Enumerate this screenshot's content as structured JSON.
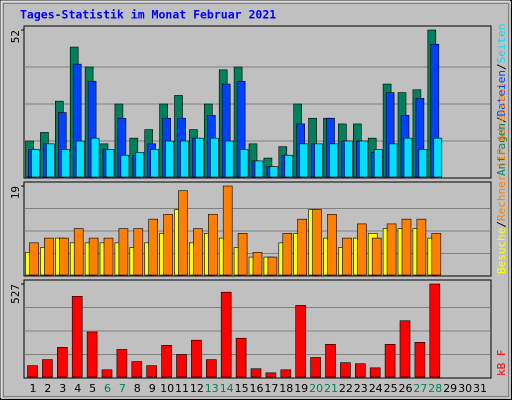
{
  "chart_data": [
    {
      "type": "bar",
      "title": "Tages-Statistik im Monat Februar 2021",
      "ylim": [
        0,
        52
      ],
      "yticks": [
        52
      ],
      "legend_separator": "/",
      "series": [
        {
          "name": "Anfragen",
          "color": "#00805c",
          "values": [
            13,
            16,
            27,
            46,
            39,
            12,
            26,
            14,
            17,
            26,
            29,
            17,
            26,
            38,
            39,
            12,
            7,
            11,
            26,
            21,
            21,
            19,
            19,
            14,
            33,
            30,
            31,
            52,
            null,
            null,
            null
          ]
        },
        {
          "name": "Dateien",
          "color": "#0040ff",
          "values": [
            10,
            12,
            23,
            40,
            34,
            10,
            21,
            8,
            12,
            21,
            21,
            14,
            22,
            33,
            34,
            6,
            4,
            8,
            19,
            12,
            21,
            13,
            13,
            9,
            30,
            22,
            28,
            47,
            null,
            null,
            null
          ]
        },
        {
          "name": "Seiten",
          "color": "#00e0ff",
          "values": [
            10,
            12,
            10,
            13,
            14,
            10,
            8,
            9,
            10,
            13,
            13,
            14,
            14,
            13,
            10,
            6,
            4,
            8,
            12,
            12,
            12,
            13,
            13,
            10,
            12,
            14,
            10,
            14,
            null,
            null,
            null
          ]
        }
      ]
    },
    {
      "type": "bar",
      "ylim": [
        0,
        19
      ],
      "yticks": [
        19
      ],
      "legend_separator": "/",
      "series": [
        {
          "name": "Besuche",
          "color": "#ffff00",
          "values": [
            5,
            6,
            8,
            7,
            7,
            7,
            7,
            6,
            7,
            9,
            14,
            7,
            9,
            8,
            6,
            4,
            4,
            7,
            9,
            14,
            8,
            6,
            8,
            9,
            10,
            10,
            10,
            8,
            null,
            null,
            null
          ]
        },
        {
          "name": "Rechner (IP-Adressen)",
          "color": "#ff8000",
          "values": [
            7,
            8,
            8,
            10,
            8,
            8,
            10,
            10,
            12,
            13,
            18,
            10,
            13,
            19,
            9,
            5,
            4,
            9,
            12,
            14,
            13,
            8,
            11,
            8,
            11,
            12,
            12,
            9,
            null,
            null,
            null
          ]
        }
      ]
    },
    {
      "type": "bar",
      "ylim": [
        0,
        527
      ],
      "yticks": [
        527
      ],
      "categories": [
        "1",
        "2",
        "3",
        "4",
        "5",
        "6",
        "7",
        "8",
        "9",
        "10",
        "11",
        "12",
        "13",
        "14",
        "15",
        "16",
        "17",
        "18",
        "19",
        "20",
        "21",
        "22",
        "23",
        "24",
        "25",
        "26",
        "27",
        "28",
        "29",
        "30",
        "31"
      ],
      "label_colors": [
        "#000000",
        "#000000",
        "#000000",
        "#000000",
        "#000000",
        "#00805c",
        "#00805c",
        "#000000",
        "#000000",
        "#000000",
        "#000000",
        "#000000",
        "#00805c",
        "#00805c",
        "#000000",
        "#000000",
        "#000000",
        "#000000",
        "#000000",
        "#00805c",
        "#00805c",
        "#000000",
        "#000000",
        "#000000",
        "#000000",
        "#000000",
        "#00805c",
        "#00805c",
        "#000000",
        "#000000",
        "#000000"
      ],
      "series": [
        {
          "name": "kB F",
          "color": "#ff0000",
          "values": [
            69,
            103,
            172,
            458,
            258,
            46,
            160,
            92,
            69,
            183,
            132,
            212,
            103,
            481,
            223,
            52,
            29,
            46,
            407,
            115,
            189,
            86,
            80,
            57,
            189,
            321,
            200,
            527,
            null,
            null,
            null
          ]
        }
      ]
    }
  ]
}
